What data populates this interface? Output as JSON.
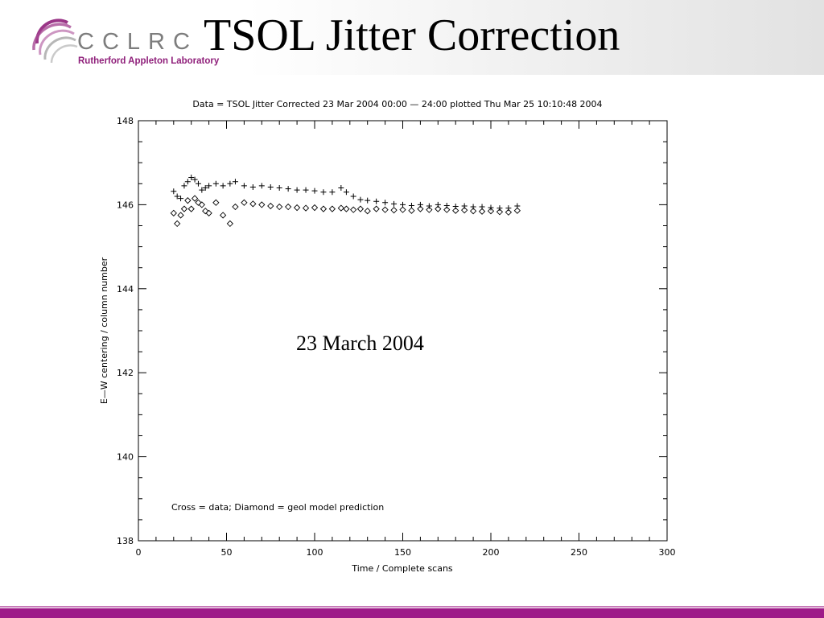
{
  "slide": {
    "title": "TSOL Jitter Correction",
    "caption": "23 March 2004"
  },
  "logo": {
    "letters": "CCLRC",
    "subtitle": "Rutherford Appleton Laboratory",
    "icon": "cclrc-swoosh-icon",
    "color": "#8f1f7a"
  },
  "colors": {
    "footer": "#9e1b88",
    "plot": "#000000"
  },
  "chart_data": {
    "type": "scatter",
    "title": "Data = TSOL Jitter Corrected 23 Mar 2004 00:00 — 24:00 plotted Thu Mar 25 10:10:48 2004",
    "xlabel": "Time / Complete scans",
    "ylabel": "E—W centering / column number",
    "legend_note": "Cross = data; Diamond = geol model prediction",
    "xlim": [
      0,
      300
    ],
    "ylim": [
      138,
      148
    ],
    "xticks": [
      0,
      50,
      100,
      150,
      200,
      250,
      300
    ],
    "yticks": [
      138,
      140,
      142,
      144,
      146,
      148
    ],
    "grid": false,
    "series": [
      {
        "marker": "cross",
        "x": [
          20,
          22,
          24,
          26,
          28,
          30,
          32,
          34,
          36,
          38,
          40,
          44,
          48,
          52,
          55,
          60,
          65,
          70,
          75,
          80,
          85,
          90,
          95,
          100,
          105,
          110,
          115,
          118,
          122,
          126,
          130,
          135,
          140,
          145,
          150,
          155,
          160,
          165,
          170,
          175,
          180,
          185,
          190,
          195,
          200,
          205,
          210,
          215
        ],
        "y": [
          146.32,
          146.2,
          146.15,
          146.45,
          146.55,
          146.65,
          146.6,
          146.5,
          146.35,
          146.4,
          146.45,
          146.5,
          146.45,
          146.5,
          146.55,
          146.45,
          146.42,
          146.45,
          146.42,
          146.4,
          146.38,
          146.35,
          146.35,
          146.33,
          146.3,
          146.3,
          146.4,
          146.3,
          146.2,
          146.12,
          146.1,
          146.08,
          146.05,
          146.02,
          146.0,
          145.98,
          146.0,
          145.97,
          146.0,
          145.98,
          145.96,
          145.97,
          145.95,
          145.95,
          145.93,
          145.92,
          145.92,
          145.97
        ]
      },
      {
        "marker": "diamond",
        "x": [
          20,
          22,
          24,
          26,
          28,
          30,
          32,
          34,
          36,
          38,
          40,
          44,
          48,
          52,
          55,
          60,
          65,
          70,
          75,
          80,
          85,
          90,
          95,
          100,
          105,
          110,
          115,
          118,
          122,
          126,
          130,
          135,
          140,
          145,
          150,
          155,
          160,
          165,
          170,
          175,
          180,
          185,
          190,
          195,
          200,
          205,
          210,
          215
        ],
        "y": [
          145.8,
          145.55,
          145.75,
          145.9,
          146.1,
          145.9,
          146.15,
          146.05,
          146.0,
          145.85,
          145.8,
          146.05,
          145.75,
          145.55,
          145.95,
          146.05,
          146.02,
          146.0,
          145.97,
          145.95,
          145.95,
          145.93,
          145.92,
          145.93,
          145.9,
          145.9,
          145.92,
          145.9,
          145.88,
          145.9,
          145.85,
          145.9,
          145.88,
          145.87,
          145.88,
          145.86,
          145.9,
          145.88,
          145.9,
          145.88,
          145.86,
          145.87,
          145.85,
          145.84,
          145.85,
          145.83,
          145.82,
          145.86
        ]
      }
    ]
  }
}
